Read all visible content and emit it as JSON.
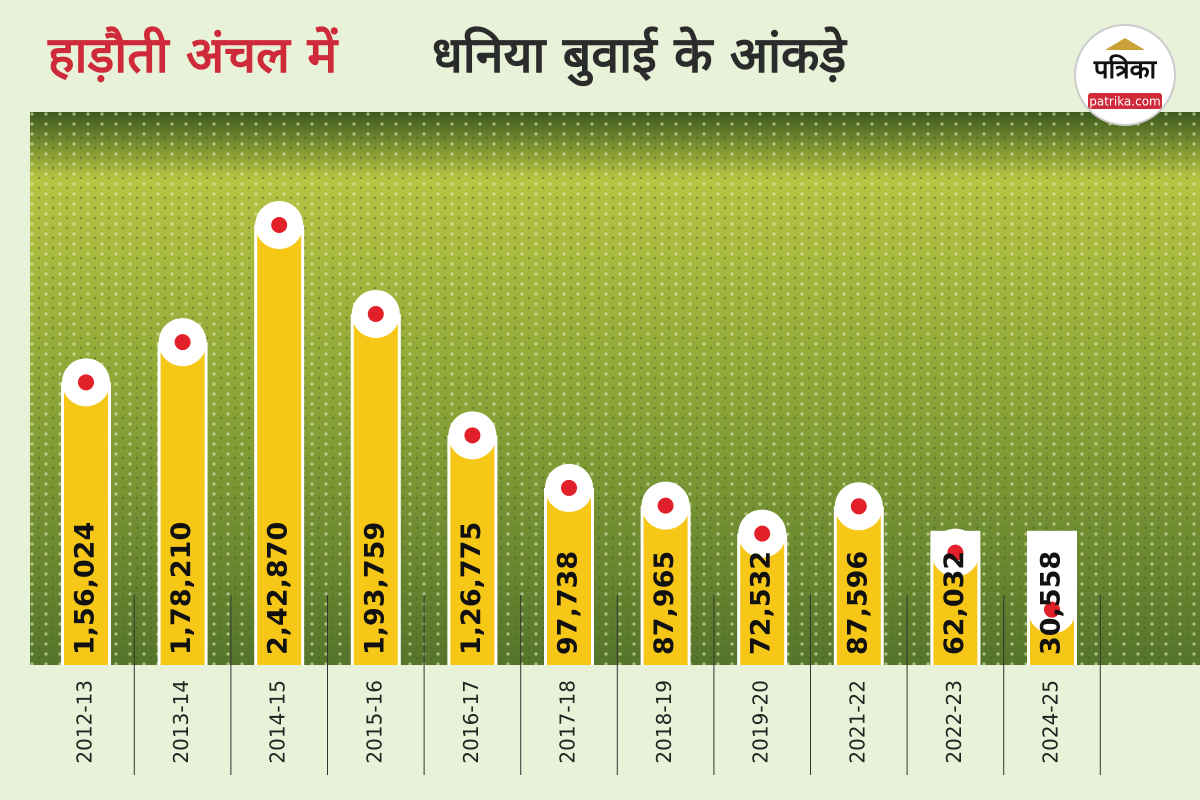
{
  "chart_data": {
    "type": "bar",
    "title": "हाड़ौती अंचल में",
    "title_rest": "धनिया बुवाई के आंकड़े",
    "logo": {
      "name": "पत्रिका",
      "site": "patrika.com"
    },
    "categories": [
      "2012-13",
      "2013-14",
      "2014-15",
      "2015-16",
      "2016-17",
      "2017-18",
      "2018-19",
      "2019-20",
      "2021-22",
      "2022-23",
      "2024-25"
    ],
    "values": [
      156024,
      178210,
      242870,
      193759,
      126775,
      97738,
      87965,
      72532,
      87596,
      62032,
      30558
    ],
    "value_labels": [
      "1,56,024",
      "1,78,210",
      "2,42,870",
      "1,93,759",
      "1,26,775",
      "97,738",
      "87,965",
      "72,532",
      "87,596",
      "62,032",
      "30,558"
    ],
    "color": "#f7c718"
  }
}
